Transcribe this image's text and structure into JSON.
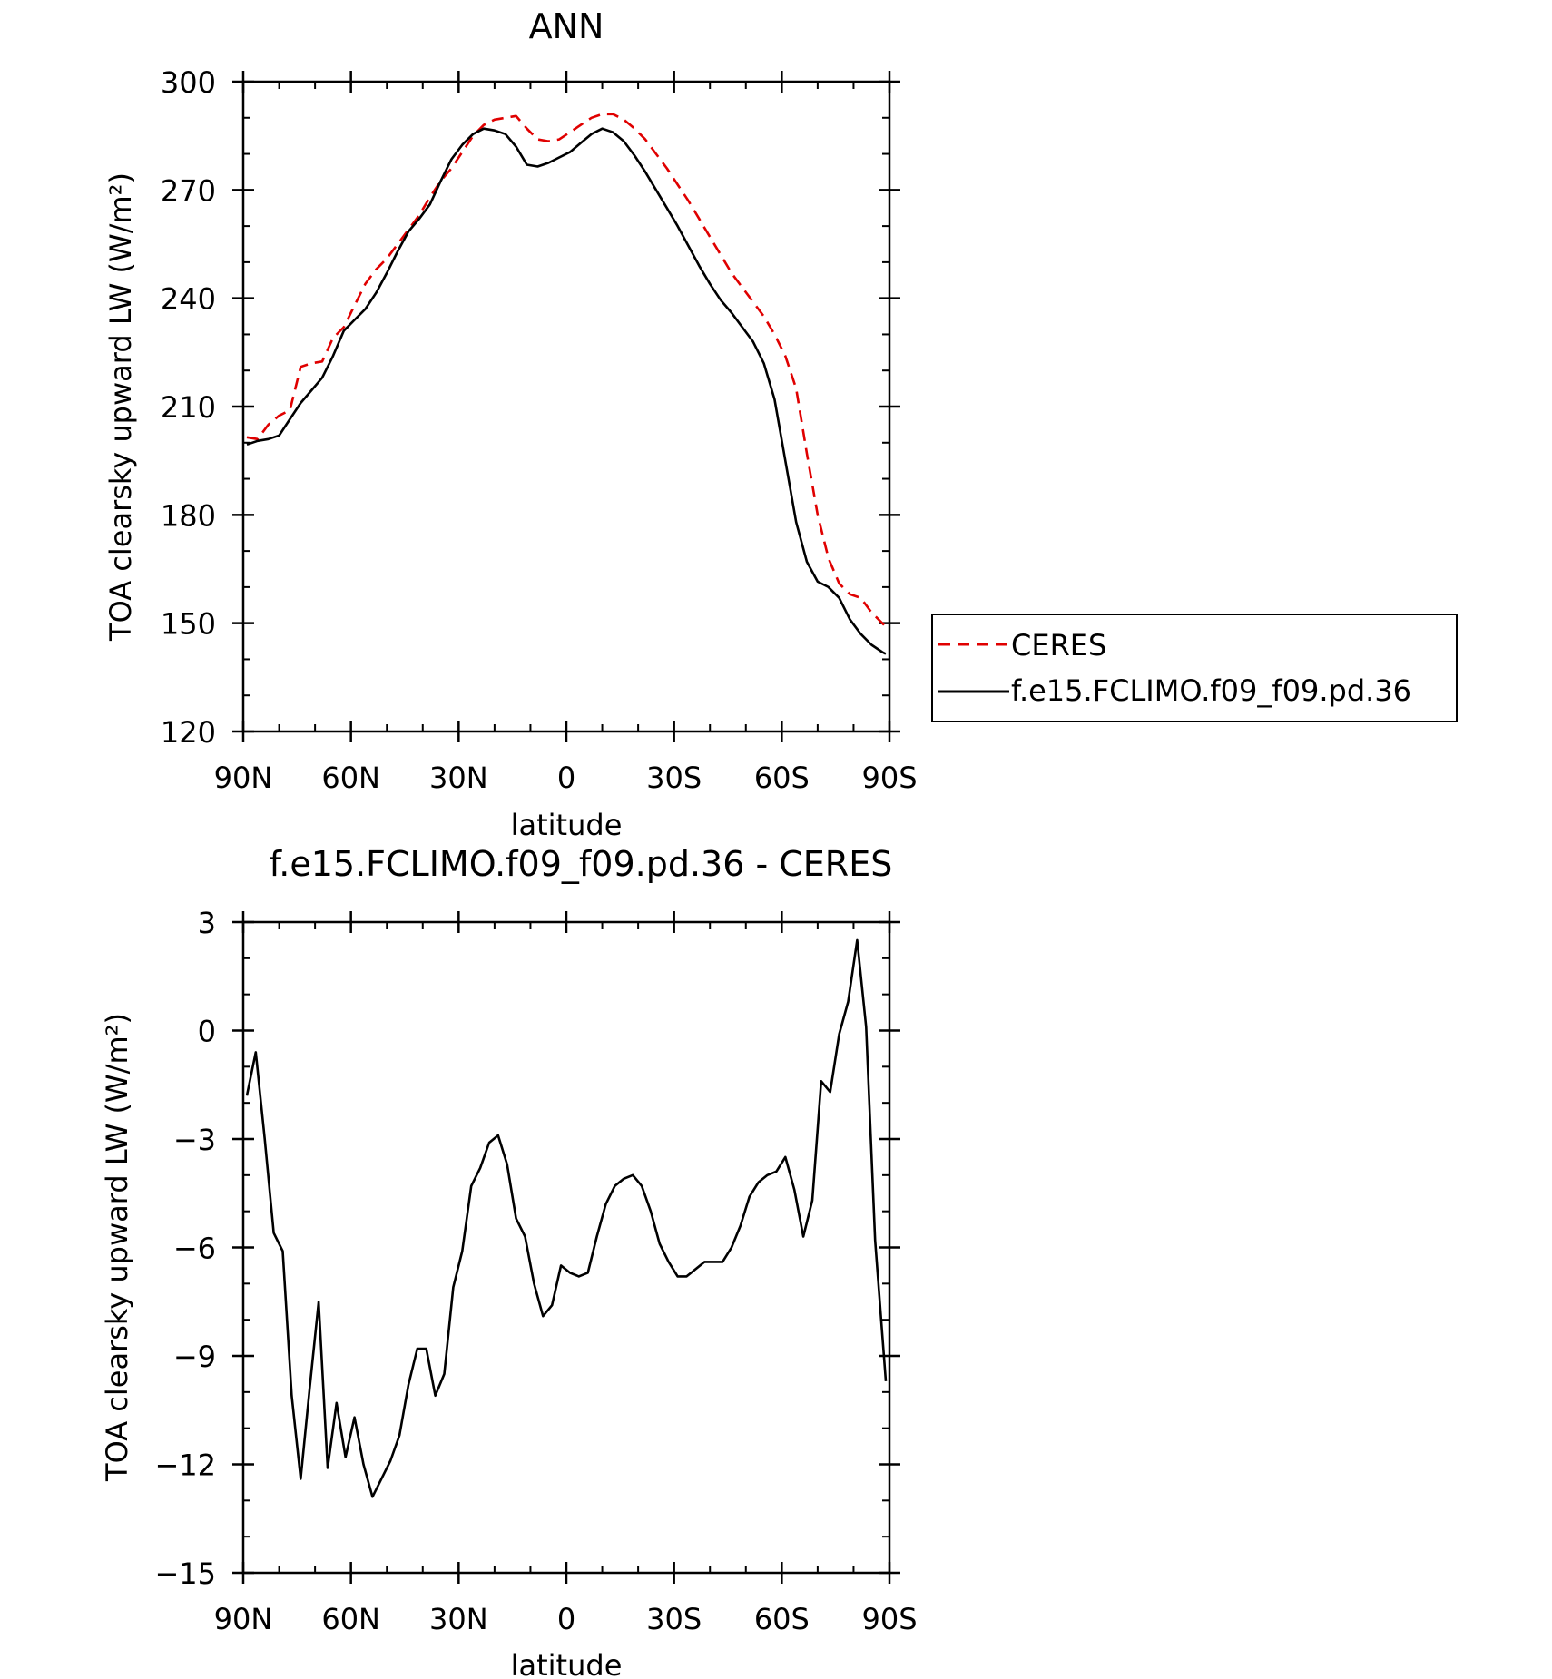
{
  "colors": {
    "ceres": "#e00000",
    "model": "#000000",
    "axis": "#000000"
  },
  "chart_data": [
    {
      "type": "line",
      "title": "ANN",
      "xlabel": "latitude",
      "ylabel": "TOA clearsky upward LW (W/m²)",
      "xlim": [
        90,
        -90
      ],
      "ylim": [
        120,
        300
      ],
      "yticks": [
        120,
        150,
        180,
        210,
        240,
        270,
        300
      ],
      "xticks": [
        90,
        60,
        30,
        0,
        -30,
        -60,
        -90
      ],
      "xtick_labels": [
        "90N",
        "60N",
        "30N",
        "0",
        "30S",
        "60S",
        "90S"
      ],
      "grid": false,
      "legend_position": "right",
      "series": [
        {
          "name": "CERES",
          "style": "dashed",
          "color": "#e00000",
          "x": [
            89,
            86,
            83,
            80,
            77,
            74,
            71,
            68,
            65,
            62,
            59,
            56,
            53,
            50,
            47,
            44,
            41,
            38,
            35,
            32,
            29,
            26,
            23,
            20,
            17,
            14,
            11,
            8,
            5,
            2,
            -1,
            -4,
            -7,
            -10,
            -13,
            -16,
            -19,
            -22,
            -25,
            -28,
            -31,
            -34,
            -37,
            -40,
            -43,
            -46,
            -49,
            -52,
            -55,
            -58,
            -61,
            -64,
            -67,
            -70,
            -73,
            -76,
            -79,
            -82,
            -85,
            -88,
            -89
          ],
          "values": [
            201.5,
            201,
            205,
            207.5,
            209,
            221,
            222,
            222.5,
            229,
            232,
            238,
            244,
            248,
            251,
            255,
            259,
            263,
            268,
            272.5,
            276,
            280.5,
            285,
            288,
            289.5,
            290,
            290.5,
            287,
            284,
            283.5,
            284,
            286,
            288,
            290,
            291,
            291,
            289.5,
            287,
            284,
            280,
            276,
            271.5,
            267,
            262,
            257,
            252,
            247,
            243,
            239,
            235,
            230,
            224,
            215,
            197,
            180,
            168,
            161,
            158,
            157,
            153,
            150,
            149
          ]
        },
        {
          "name": "f.e15.FCLIMO.f09_f09.pd.36",
          "style": "solid",
          "color": "#000000",
          "x": [
            89,
            86,
            83,
            80,
            77,
            74,
            71,
            68,
            65,
            62,
            59,
            56,
            53,
            50,
            47,
            44,
            41,
            38,
            35,
            32,
            29,
            26,
            23,
            20,
            17,
            14,
            11,
            8,
            5,
            2,
            -1,
            -4,
            -7,
            -10,
            -13,
            -16,
            -19,
            -22,
            -25,
            -28,
            -31,
            -34,
            -37,
            -40,
            -43,
            -46,
            -49,
            -52,
            -55,
            -58,
            -61,
            -64,
            -67,
            -70,
            -73,
            -76,
            -79,
            -82,
            -85,
            -88,
            -89
          ],
          "values": [
            199.5,
            200.5,
            201,
            202,
            206.5,
            211,
            214.5,
            218,
            224,
            231,
            234,
            237,
            241.5,
            247,
            253,
            258.5,
            262,
            266,
            272.5,
            278.5,
            282.5,
            285.5,
            287,
            286.5,
            285.5,
            282,
            277,
            276.5,
            277.5,
            279,
            280.5,
            283,
            285.5,
            287,
            286,
            283.5,
            279.5,
            275,
            270,
            265,
            260,
            254.5,
            249,
            244,
            239.5,
            236,
            232,
            228,
            222,
            212,
            195,
            178,
            167,
            161.5,
            160,
            157,
            151,
            147,
            144,
            142,
            141.5
          ]
        }
      ]
    },
    {
      "type": "line",
      "title": "f.e15.FCLIMO.f09_f09.pd.36 - CERES",
      "xlabel": "latitude",
      "ylabel": "TOA clearsky upward LW (W/m²)",
      "xlim": [
        90,
        -90
      ],
      "ylim": [
        -15,
        3
      ],
      "yticks": [
        -15,
        -12,
        -9,
        -6,
        -3,
        0,
        3
      ],
      "xticks": [
        90,
        60,
        30,
        0,
        -30,
        -60,
        -90
      ],
      "xtick_labels": [
        "90N",
        "60N",
        "30N",
        "0",
        "30S",
        "60S",
        "90S"
      ],
      "grid": false,
      "series": [
        {
          "name": "",
          "style": "solid",
          "color": "#000000",
          "x": [
            89,
            86.5,
            84,
            81.5,
            79,
            76.5,
            74,
            71.5,
            69,
            66.5,
            64,
            61.5,
            59,
            56.5,
            54,
            51.5,
            49,
            46.5,
            44,
            41.5,
            39,
            36.5,
            34,
            31.5,
            29,
            26.5,
            24,
            21.5,
            19,
            16.5,
            14,
            11.5,
            9,
            6.5,
            4,
            1.5,
            -1,
            -3.5,
            -6,
            -8.5,
            -11,
            -13.5,
            -16,
            -18.5,
            -21,
            -23.5,
            -26,
            -28.5,
            -31,
            -33.5,
            -36,
            -38.5,
            -41,
            -43.5,
            -46,
            -48.5,
            -51,
            -53.5,
            -56,
            -58.5,
            -61,
            -63.5,
            -66,
            -68.5,
            -71,
            -73.5,
            -76,
            -78.5,
            -81,
            -83.5,
            -86,
            -89
          ],
          "values": [
            -1.8,
            -0.6,
            -3,
            -5.6,
            -6.1,
            -10.1,
            -12.4,
            -9.9,
            -7.5,
            -12.1,
            -10.3,
            -11.8,
            -10.7,
            -12,
            -12.9,
            -12.4,
            -11.9,
            -11.2,
            -9.8,
            -8.8,
            -8.8,
            -10.1,
            -9.5,
            -7.1,
            -6.1,
            -4.3,
            -3.8,
            -3.1,
            -2.9,
            -3.7,
            -5.2,
            -5.7,
            -7,
            -7.9,
            -7.6,
            -6.5,
            -6.7,
            -6.8,
            -6.7,
            -5.7,
            -4.8,
            -4.3,
            -4.1,
            -4,
            -4.3,
            -5,
            -5.9,
            -6.4,
            -6.8,
            -6.8,
            -6.6,
            -6.4,
            -6.4,
            -6.4,
            -6,
            -5.4,
            -4.6,
            -4.2,
            -4,
            -3.9,
            -3.5,
            -4.4,
            -5.7,
            -4.7,
            -1.4,
            -1.7,
            -0.1,
            0.8,
            2.5,
            0.1,
            -5.8,
            -9.7
          ]
        }
      ]
    }
  ]
}
